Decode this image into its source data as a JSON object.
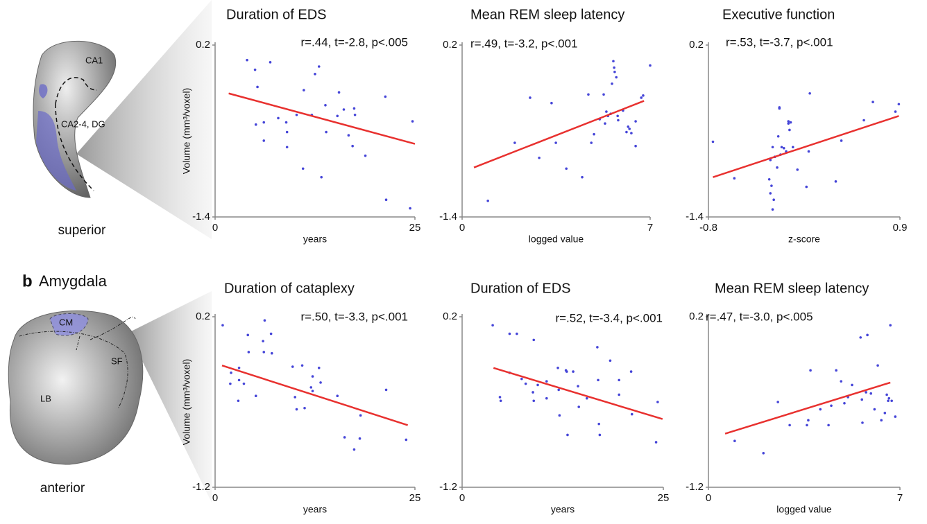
{
  "figure": {
    "panel_b_letter": "b",
    "panel_b_title": "Amygdala",
    "hippocampus": {
      "view": "superior",
      "regions": [
        "CA1",
        "CA2-4, DG"
      ]
    },
    "amygdala": {
      "view": "anterior",
      "regions": [
        "CM",
        "SF",
        "LB"
      ]
    }
  },
  "chart_data": [
    {
      "type": "scatter",
      "title": "Duration of EDS",
      "annotation": "r=.44, t=-2.8, p<.005",
      "xlabel": "years",
      "ylabel": "Volume (mm³/voxel)",
      "color": "#4545d8",
      "x": [
        4.0,
        5.0,
        6.9,
        5.3,
        5.1,
        6.1,
        6.1,
        7.9,
        8.9,
        9.0,
        9.0,
        10.2,
        11.1,
        11.0,
        12.1,
        12.5,
        13.0,
        13.3,
        13.8,
        13.9,
        15.3,
        15.5,
        16.1,
        16.7,
        17.2,
        17.4,
        17.5,
        18.8,
        21.3,
        21.4,
        24.4,
        24.7
      ],
      "y": [
        0.06,
        -0.03,
        0.04,
        -0.19,
        -0.54,
        -0.52,
        -0.69,
        -0.48,
        -0.52,
        -0.61,
        -0.75,
        -0.45,
        -0.22,
        -0.95,
        -0.45,
        -0.07,
        0.0,
        -1.03,
        -0.36,
        -0.61,
        -0.46,
        -0.24,
        -0.4,
        -0.64,
        -0.74,
        -0.39,
        -0.45,
        -0.83,
        -0.28,
        -1.24,
        -1.32,
        -0.51
      ],
      "fit": {
        "x": [
          1.7,
          25
        ],
        "y": [
          -0.25,
          -0.72
        ],
        "color": "#e8312f"
      },
      "xlim": [
        0,
        25
      ],
      "ylim": [
        -1.4,
        0.2
      ],
      "xticks": [
        0,
        25
      ],
      "yticks": [
        -1.4,
        0.2
      ]
    },
    {
      "type": "scatter",
      "title": "Mean REM sleep latency",
      "annotation": "r=.49, t=-3.2, p<.001",
      "xlabel": "logged value",
      "color": "#4545d8",
      "x": [
        0.96,
        1.96,
        2.53,
        2.87,
        3.33,
        3.49,
        3.88,
        4.47,
        4.7,
        4.81,
        4.91,
        5.12,
        5.27,
        5.32,
        5.37,
        5.43,
        5.53,
        5.58,
        5.63,
        5.66,
        5.68,
        5.74,
        5.79,
        5.81,
        5.99,
        6.12,
        6.18,
        6.23,
        6.3,
        6.46,
        6.67,
        6.74,
        7.0,
        6.46
      ],
      "y": [
        -1.25,
        -0.71,
        -0.29,
        -0.85,
        -0.34,
        -0.71,
        -0.95,
        -1.03,
        -0.26,
        -0.71,
        -0.63,
        -0.49,
        -0.26,
        -0.53,
        -0.42,
        -0.46,
        -0.44,
        -0.16,
        0.05,
        -0.01,
        -0.05,
        -0.1,
        -0.46,
        -0.5,
        -0.41,
        -0.61,
        -0.56,
        -0.58,
        -0.62,
        -0.51,
        -0.29,
        -0.27,
        0.01,
        -0.74
      ],
      "fit": {
        "x": [
          0.44,
          6.77
        ],
        "y": [
          -0.94,
          -0.32
        ],
        "color": "#e8312f"
      },
      "xlim": [
        0,
        7
      ],
      "ylim": [
        -1.4,
        0.2
      ],
      "xticks": [
        0,
        7
      ],
      "yticks": [
        -1.4,
        0.2
      ]
    },
    {
      "type": "scatter",
      "title": "Executive function",
      "annotation": "r=.53, t=-3.7, p<.001",
      "xlabel": "z-score",
      "color": "#4545d8",
      "x": [
        -0.76,
        -0.57,
        -0.26,
        -0.25,
        -0.25,
        -0.24,
        -0.23,
        -0.23,
        -0.22,
        -0.21,
        -0.19,
        -0.18,
        -0.17,
        -0.17,
        -0.16,
        -0.15,
        -0.13,
        -0.11,
        -0.09,
        -0.09,
        -0.08,
        -0.07,
        -0.05,
        -0.01,
        0.07,
        0.09,
        0.1,
        0.33,
        0.38,
        0.58,
        0.66,
        0.86,
        0.89
      ],
      "y": [
        -0.7,
        -1.04,
        -1.05,
        -1.18,
        -0.87,
        -1.11,
        -0.75,
        -1.33,
        -1.24,
        -0.84,
        -0.94,
        -0.65,
        -0.38,
        -0.39,
        -0.82,
        -0.75,
        -0.76,
        -0.79,
        -0.53,
        -0.51,
        -0.59,
        -0.52,
        -0.75,
        -0.96,
        -1.12,
        -0.79,
        -0.25,
        -1.07,
        -0.69,
        -0.5,
        -0.33,
        -0.42,
        -0.35
      ],
      "fit": {
        "x": [
          -0.76,
          0.89
        ],
        "y": [
          -1.03,
          -0.46
        ],
        "color": "#e8312f"
      },
      "xlim": [
        -0.8,
        0.9
      ],
      "ylim": [
        -1.4,
        0.2
      ],
      "xticks": [
        -0.8,
        0.9
      ],
      "yticks": [
        -1.4,
        0.2
      ]
    },
    {
      "type": "scatter",
      "title": "Duration of cataplexy",
      "annotation": "r=.50, t=-3.3, p<.001",
      "xlabel": "years",
      "ylabel": "Volume (mm³/voxel)",
      "color": "#4545d8",
      "x": [
        0.95,
        2.0,
        1.9,
        2.9,
        3.0,
        3.0,
        3.6,
        4.1,
        4.2,
        5.1,
        6.0,
        6.1,
        6.2,
        7.0,
        7.1,
        9.7,
        10.0,
        10.2,
        10.9,
        11.2,
        12.0,
        12.2,
        12.2,
        13.0,
        13.2,
        15.3,
        16.2,
        17.4,
        18.2,
        18.1,
        21.4,
        23.9
      ],
      "y": [
        0.13,
        -0.26,
        -0.35,
        -0.49,
        -0.22,
        -0.32,
        -0.35,
        0.05,
        -0.09,
        -0.45,
        0.0,
        -0.09,
        0.17,
        0.06,
        -0.1,
        -0.21,
        -0.46,
        -0.56,
        -0.2,
        -0.55,
        -0.38,
        -0.29,
        -0.41,
        -0.22,
        -0.34,
        -0.45,
        -0.79,
        -0.89,
        -0.61,
        -0.8,
        -0.4,
        -0.81
      ],
      "fit": {
        "x": [
          0.87,
          24.1
        ],
        "y": [
          -0.2,
          -0.69
        ],
        "color": "#e8312f"
      },
      "xlim": [
        0,
        25
      ],
      "ylim": [
        -1.2,
        0.2
      ],
      "xticks": [
        0,
        25
      ],
      "yticks": [
        -1.2,
        0.2
      ]
    },
    {
      "type": "scatter",
      "title": "Duration of EDS",
      "annotation": "r=.52, t=-3.4, p<.001",
      "xlabel": "years",
      "color": "#4545d8",
      "x": [
        3.8,
        5.9,
        6.8,
        8.9,
        5.9,
        4.7,
        4.8,
        7.4,
        7.9,
        8.8,
        8.9,
        9.4,
        10.5,
        10.5,
        11.9,
        12.0,
        12.1,
        12.9,
        13.0,
        13.1,
        13.8,
        14.4,
        14.5,
        15.5,
        16.8,
        16.9,
        17.0,
        17.1,
        18.4,
        19.5,
        19.5,
        21.0,
        21.1,
        24.1,
        24.3
      ],
      "y": [
        0.13,
        0.06,
        0.06,
        0.01,
        -0.26,
        -0.46,
        -0.49,
        -0.31,
        -0.35,
        -0.42,
        -0.49,
        -0.36,
        -0.33,
        -0.47,
        -0.22,
        -0.4,
        -0.61,
        -0.24,
        -0.25,
        -0.77,
        -0.25,
        -0.37,
        -0.54,
        -0.47,
        -0.05,
        -0.32,
        -0.68,
        -0.77,
        -0.16,
        -0.32,
        -0.44,
        -0.25,
        -0.6,
        -0.83,
        -0.5
      ],
      "fit": {
        "x": [
          3.9,
          24.9
        ],
        "y": [
          -0.22,
          -0.64
        ],
        "color": "#e8312f"
      },
      "xlim": [
        0,
        25
      ],
      "ylim": [
        -1.2,
        0.2
      ],
      "xticks": [
        0,
        25
      ],
      "yticks": [
        -1.2,
        0.2
      ]
    },
    {
      "type": "scatter",
      "title": "Mean REM sleep latency",
      "annotation": "r=.47, t=-3.0, p<.005",
      "xlabel": "logged value",
      "color": "#4545d8",
      "x": [
        0.96,
        2.01,
        2.54,
        2.97,
        3.6,
        3.65,
        3.73,
        4.09,
        4.39,
        4.49,
        4.67,
        4.85,
        4.97,
        5.1,
        5.25,
        5.56,
        5.61,
        5.63,
        5.76,
        5.81,
        5.94,
        6.07,
        6.19,
        6.32,
        6.45,
        6.52,
        6.57,
        6.6,
        6.65,
        6.7,
        6.83
      ],
      "y": [
        -0.82,
        -0.92,
        -0.5,
        -0.69,
        -0.69,
        -0.65,
        -0.24,
        -0.56,
        -0.69,
        -0.53,
        -0.24,
        -0.33,
        -0.51,
        -0.46,
        -0.36,
        0.03,
        -0.48,
        -0.67,
        -0.42,
        0.05,
        -0.43,
        -0.56,
        -0.2,
        -0.65,
        -0.59,
        -0.44,
        -0.49,
        -0.47,
        0.13,
        -0.49,
        -0.62
      ],
      "fit": {
        "x": [
          0.61,
          6.65
        ],
        "y": [
          -0.76,
          -0.34
        ],
        "color": "#e8312f"
      },
      "xlim": [
        0,
        7
      ],
      "ylim": [
        -1.2,
        0.2
      ],
      "xticks": [
        0,
        7
      ],
      "yticks": [
        -1.2,
        0.2
      ]
    }
  ]
}
